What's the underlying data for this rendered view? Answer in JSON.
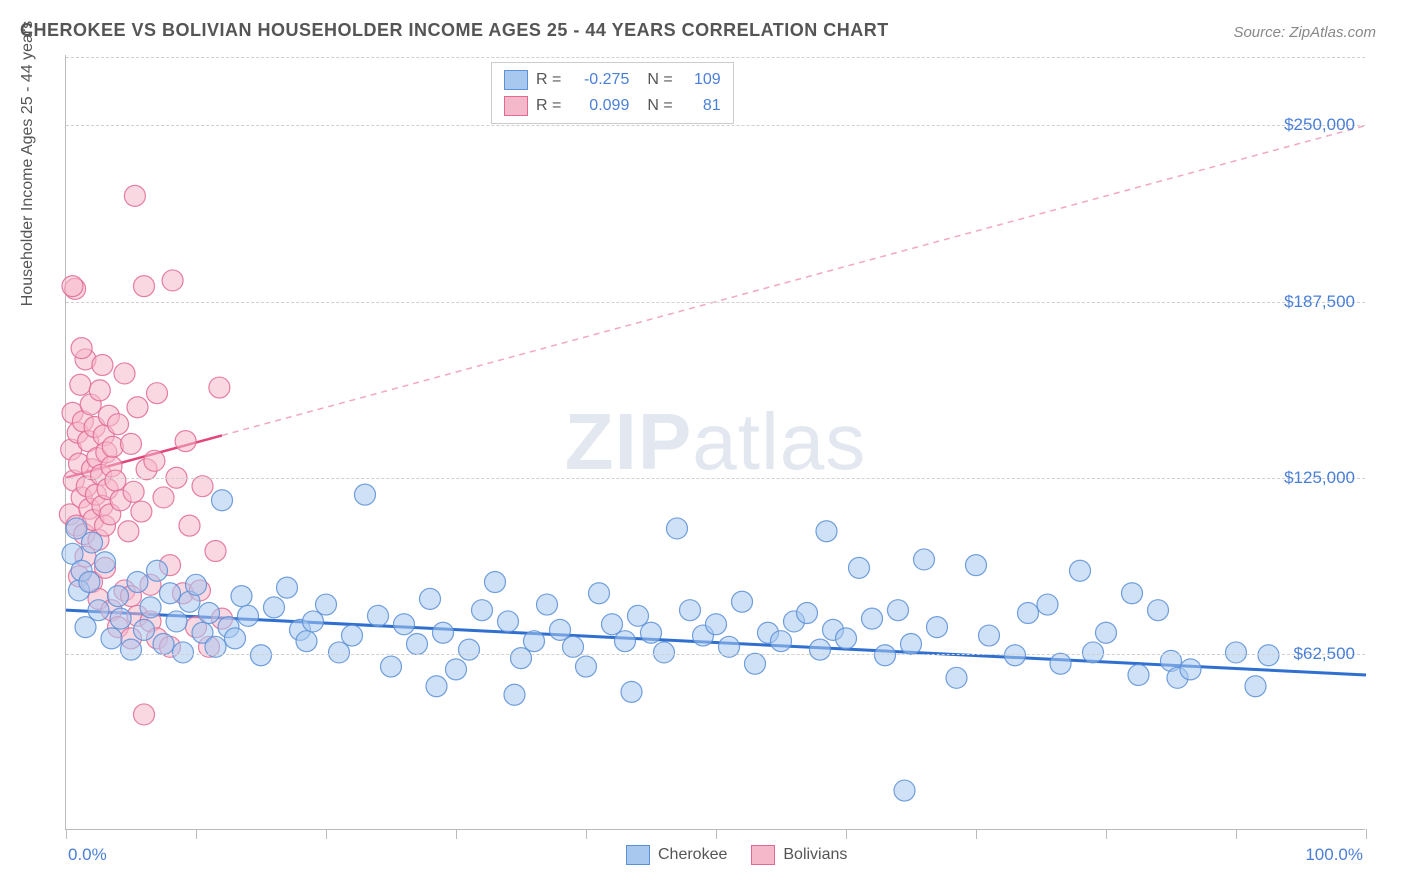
{
  "title": "CHEROKEE VS BOLIVIAN HOUSEHOLDER INCOME AGES 25 - 44 YEARS CORRELATION CHART",
  "source": "Source: ZipAtlas.com",
  "y_axis_label": "Householder Income Ages 25 - 44 years",
  "watermark": {
    "bold": "ZIP",
    "light": "atlas"
  },
  "chart": {
    "type": "scatter",
    "xlim": [
      0,
      100
    ],
    "ylim": [
      0,
      275000
    ],
    "x_tick_positions": [
      0,
      10,
      20,
      30,
      40,
      50,
      60,
      70,
      80,
      90,
      100
    ],
    "x_tick_labels": {
      "0": "0.0%",
      "100": "100.0%"
    },
    "y_grid": [
      {
        "y": 62500,
        "label": "$62,500"
      },
      {
        "y": 125000,
        "label": "$125,000"
      },
      {
        "y": 187500,
        "label": "$187,500"
      },
      {
        "y": 250000,
        "label": "$250,000"
      }
    ],
    "background_color": "#ffffff",
    "grid_color": "#d0d0d0",
    "axis_color": "#bbbbbb",
    "marker_radius": 10.5,
    "marker_opacity": 0.55,
    "series": [
      {
        "name": "Cherokee",
        "fill": "#a8c8f0",
        "stroke": "#5b8fd6",
        "R": "-0.275",
        "N": "109",
        "trend": {
          "x1": 0,
          "y1": 78000,
          "x2": 100,
          "y2": 55000,
          "color": "#2f6fd0",
          "width": 3,
          "dash": "none"
        },
        "points": [
          [
            0.5,
            98000
          ],
          [
            0.8,
            107000
          ],
          [
            1.0,
            85000
          ],
          [
            1.2,
            92000
          ],
          [
            1.5,
            72000
          ],
          [
            1.8,
            88000
          ],
          [
            2.0,
            102000
          ],
          [
            2.5,
            78000
          ],
          [
            3.0,
            95000
          ],
          [
            3.5,
            68000
          ],
          [
            4.0,
            83000
          ],
          [
            4.2,
            75000
          ],
          [
            5.0,
            64000
          ],
          [
            5.5,
            88000
          ],
          [
            6.0,
            71000
          ],
          [
            6.5,
            79000
          ],
          [
            7.0,
            92000
          ],
          [
            7.5,
            66000
          ],
          [
            8.0,
            84000
          ],
          [
            8.5,
            74000
          ],
          [
            9.0,
            63000
          ],
          [
            9.5,
            81000
          ],
          [
            10.0,
            87000
          ],
          [
            10.5,
            70000
          ],
          [
            11.0,
            77000
          ],
          [
            11.5,
            65000
          ],
          [
            12.0,
            117000
          ],
          [
            12.5,
            72000
          ],
          [
            13.0,
            68000
          ],
          [
            13.5,
            83000
          ],
          [
            14.0,
            76000
          ],
          [
            15.0,
            62000
          ],
          [
            16.0,
            79000
          ],
          [
            17.0,
            86000
          ],
          [
            18.0,
            71000
          ],
          [
            18.5,
            67000
          ],
          [
            19.0,
            74000
          ],
          [
            20.0,
            80000
          ],
          [
            21.0,
            63000
          ],
          [
            22.0,
            69000
          ],
          [
            23.0,
            119000
          ],
          [
            24.0,
            76000
          ],
          [
            25.0,
            58000
          ],
          [
            26.0,
            73000
          ],
          [
            27.0,
            66000
          ],
          [
            28.0,
            82000
          ],
          [
            28.5,
            51000
          ],
          [
            29.0,
            70000
          ],
          [
            30.0,
            57000
          ],
          [
            31.0,
            64000
          ],
          [
            32.0,
            78000
          ],
          [
            33.0,
            88000
          ],
          [
            34.0,
            74000
          ],
          [
            34.5,
            48000
          ],
          [
            35.0,
            61000
          ],
          [
            36.0,
            67000
          ],
          [
            37.0,
            80000
          ],
          [
            38.0,
            71000
          ],
          [
            39.0,
            65000
          ],
          [
            40.0,
            58000
          ],
          [
            41.0,
            84000
          ],
          [
            42.0,
            73000
          ],
          [
            43.0,
            67000
          ],
          [
            43.5,
            49000
          ],
          [
            44.0,
            76000
          ],
          [
            45.0,
            70000
          ],
          [
            46.0,
            63000
          ],
          [
            47.0,
            107000
          ],
          [
            48.0,
            78000
          ],
          [
            49.0,
            69000
          ],
          [
            50.0,
            73000
          ],
          [
            51.0,
            65000
          ],
          [
            52.0,
            81000
          ],
          [
            53.0,
            59000
          ],
          [
            54.0,
            70000
          ],
          [
            55.0,
            67000
          ],
          [
            56.0,
            74000
          ],
          [
            57.0,
            77000
          ],
          [
            58.0,
            64000
          ],
          [
            58.5,
            106000
          ],
          [
            59.0,
            71000
          ],
          [
            60.0,
            68000
          ],
          [
            61.0,
            93000
          ],
          [
            62.0,
            75000
          ],
          [
            63.0,
            62000
          ],
          [
            64.0,
            78000
          ],
          [
            64.5,
            14000
          ],
          [
            65.0,
            66000
          ],
          [
            66.0,
            96000
          ],
          [
            67.0,
            72000
          ],
          [
            68.5,
            54000
          ],
          [
            70.0,
            94000
          ],
          [
            71.0,
            69000
          ],
          [
            73.0,
            62000
          ],
          [
            74.0,
            77000
          ],
          [
            75.5,
            80000
          ],
          [
            76.5,
            59000
          ],
          [
            78.0,
            92000
          ],
          [
            79.0,
            63000
          ],
          [
            80.0,
            70000
          ],
          [
            82.0,
            84000
          ],
          [
            82.5,
            55000
          ],
          [
            84.0,
            78000
          ],
          [
            85.0,
            60000
          ],
          [
            85.5,
            54000
          ],
          [
            86.5,
            57000
          ],
          [
            90.0,
            63000
          ],
          [
            91.5,
            51000
          ],
          [
            92.5,
            62000
          ]
        ]
      },
      {
        "name": "Bolivians",
        "fill": "#f5b8ca",
        "stroke": "#e16a94",
        "R": "0.099",
        "N": "81",
        "trend_solid": {
          "x1": 0,
          "y1": 125000,
          "x2": 12,
          "y2": 140000,
          "color": "#e3447a",
          "width": 2.5
        },
        "trend_dash": {
          "x1": 12,
          "y1": 140000,
          "x2": 100,
          "y2": 250000,
          "color": "#f2a8c0",
          "width": 1.5,
          "dash": "6,5"
        },
        "points": [
          [
            0.3,
            112000
          ],
          [
            0.4,
            135000
          ],
          [
            0.5,
            148000
          ],
          [
            0.6,
            124000
          ],
          [
            0.7,
            192000
          ],
          [
            0.8,
            108000
          ],
          [
            0.9,
            141000
          ],
          [
            1.0,
            130000
          ],
          [
            1.1,
            158000
          ],
          [
            1.2,
            118000
          ],
          [
            1.3,
            145000
          ],
          [
            1.4,
            105000
          ],
          [
            1.5,
            167000
          ],
          [
            1.6,
            122000
          ],
          [
            1.7,
            138000
          ],
          [
            1.8,
            114000
          ],
          [
            1.9,
            151000
          ],
          [
            2.0,
            128000
          ],
          [
            2.1,
            110000
          ],
          [
            2.2,
            143000
          ],
          [
            2.3,
            119000
          ],
          [
            2.4,
            132000
          ],
          [
            2.5,
            103000
          ],
          [
            2.6,
            156000
          ],
          [
            2.7,
            126000
          ],
          [
            2.8,
            115000
          ],
          [
            2.9,
            140000
          ],
          [
            3.0,
            108000
          ],
          [
            3.1,
            134000
          ],
          [
            3.2,
            121000
          ],
          [
            3.3,
            147000
          ],
          [
            3.4,
            112000
          ],
          [
            3.5,
            129000
          ],
          [
            3.6,
            136000
          ],
          [
            3.8,
            124000
          ],
          [
            4.0,
            144000
          ],
          [
            4.2,
            117000
          ],
          [
            4.5,
            162000
          ],
          [
            4.8,
            106000
          ],
          [
            5.0,
            137000
          ],
          [
            5.2,
            120000
          ],
          [
            5.3,
            225000
          ],
          [
            5.5,
            150000
          ],
          [
            5.8,
            113000
          ],
          [
            6.0,
            193000
          ],
          [
            6.2,
            128000
          ],
          [
            6.5,
            87000
          ],
          [
            6.8,
            131000
          ],
          [
            7.0,
            155000
          ],
          [
            7.5,
            118000
          ],
          [
            8.0,
            94000
          ],
          [
            8.2,
            195000
          ],
          [
            8.5,
            125000
          ],
          [
            9.0,
            84000
          ],
          [
            9.2,
            138000
          ],
          [
            9.5,
            108000
          ],
          [
            10.0,
            72000
          ],
          [
            10.3,
            85000
          ],
          [
            10.5,
            122000
          ],
          [
            11.0,
            65000
          ],
          [
            11.5,
            99000
          ],
          [
            11.8,
            157000
          ],
          [
            12.0,
            75000
          ],
          [
            1.0,
            90000
          ],
          [
            1.5,
            97000
          ],
          [
            2.0,
            88000
          ],
          [
            2.5,
            82000
          ],
          [
            3.0,
            93000
          ],
          [
            3.5,
            78000
          ],
          [
            4.0,
            72000
          ],
          [
            4.5,
            85000
          ],
          [
            5.0,
            68000
          ],
          [
            5.0,
            83000
          ],
          [
            5.5,
            76000
          ],
          [
            6.0,
            41000
          ],
          [
            6.5,
            74000
          ],
          [
            7.0,
            68000
          ],
          [
            8.0,
            65000
          ],
          [
            0.5,
            193000
          ],
          [
            1.2,
            171000
          ],
          [
            2.8,
            165000
          ]
        ]
      }
    ]
  },
  "legend_bottom": [
    {
      "label": "Cherokee",
      "fill": "#a8c8f0",
      "stroke": "#5b8fd6"
    },
    {
      "label": "Bolivians",
      "fill": "#f5b8ca",
      "stroke": "#e16a94"
    }
  ]
}
